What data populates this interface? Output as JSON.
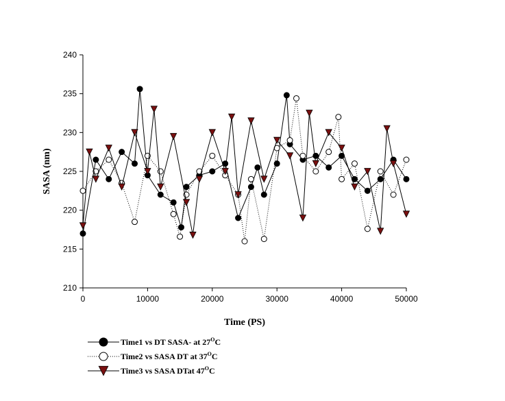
{
  "chart_data": {
    "type": "scatter",
    "title": "",
    "xlabel": "Time (PS)",
    "ylabel": "SASA (nm)",
    "xlim": [
      0,
      50000
    ],
    "ylim": [
      210,
      240
    ],
    "xticks": [
      0,
      10000,
      20000,
      30000,
      40000,
      50000
    ],
    "yticks": [
      210,
      215,
      220,
      225,
      230,
      235,
      240
    ],
    "grid": false,
    "legend_position": "bottom-left",
    "series": [
      {
        "name": "Time1 vs DT SASA- at 27",
        "legend_unit": "C",
        "legend_superscript": "O",
        "marker": "filled-circle",
        "line": "solid",
        "color": "#000000",
        "x": [
          0,
          2000,
          4000,
          6000,
          8000,
          8800,
          10000,
          12000,
          14000,
          15200,
          16000,
          18000,
          20000,
          22000,
          24000,
          26000,
          27000,
          28000,
          30000,
          31500,
          32000,
          34000,
          36000,
          38000,
          40000,
          42000,
          44000,
          46000,
          48000,
          50000
        ],
        "y": [
          217.0,
          226.5,
          224.0,
          227.5,
          226.0,
          235.6,
          224.5,
          222.0,
          221.0,
          217.8,
          223.0,
          224.5,
          225.0,
          226.0,
          219.0,
          223.0,
          225.5,
          222.0,
          226.0,
          234.8,
          228.5,
          226.5,
          227.0,
          225.5,
          227.0,
          224.0,
          222.5,
          224.0,
          226.5,
          224.0
        ]
      },
      {
        "name": "Time2 vs SASA DT at 37",
        "legend_unit": "C",
        "legend_superscript": "O",
        "marker": "open-circle",
        "line": "dotted",
        "color": "#000000",
        "x": [
          0,
          2000,
          4000,
          6000,
          8000,
          10000,
          12000,
          14000,
          15000,
          16000,
          18000,
          20000,
          22000,
          24000,
          25000,
          26000,
          28000,
          30000,
          32000,
          33000,
          34000,
          36000,
          38000,
          39500,
          40000,
          42000,
          44000,
          46000,
          48000,
          50000
        ],
        "y": [
          222.5,
          225.0,
          226.5,
          223.5,
          218.5,
          227.0,
          225.0,
          219.5,
          216.6,
          222.0,
          225.0,
          227.0,
          224.5,
          222.0,
          216.0,
          224.0,
          216.3,
          228.0,
          229.0,
          234.4,
          227.0,
          225.0,
          227.5,
          232.0,
          224.0,
          226.0,
          217.6,
          225.0,
          222.0,
          226.5
        ]
      },
      {
        "name": "Time3  vs SASA DTat 47",
        "legend_unit": "C",
        "legend_superscript": "O",
        "marker": "filled-triangle-down",
        "line": "solid",
        "color": "#7a1010",
        "x": [
          0,
          1000,
          2000,
          4000,
          6000,
          8000,
          10000,
          11000,
          12000,
          14000,
          16000,
          17000,
          18000,
          20000,
          22000,
          23000,
          24000,
          26000,
          28000,
          30000,
          32000,
          34000,
          35000,
          36000,
          38000,
          40000,
          42000,
          44000,
          46000,
          47000,
          48000,
          50000
        ],
        "y": [
          218.0,
          227.5,
          224.0,
          228.0,
          223.0,
          230.0,
          225.0,
          233.0,
          223.0,
          229.5,
          221.0,
          216.8,
          224.0,
          230.0,
          225.0,
          232.0,
          222.0,
          231.5,
          224.0,
          229.0,
          227.0,
          219.0,
          232.5,
          226.0,
          230.0,
          228.0,
          223.0,
          225.0,
          217.3,
          230.5,
          226.0,
          219.5
        ]
      }
    ]
  }
}
